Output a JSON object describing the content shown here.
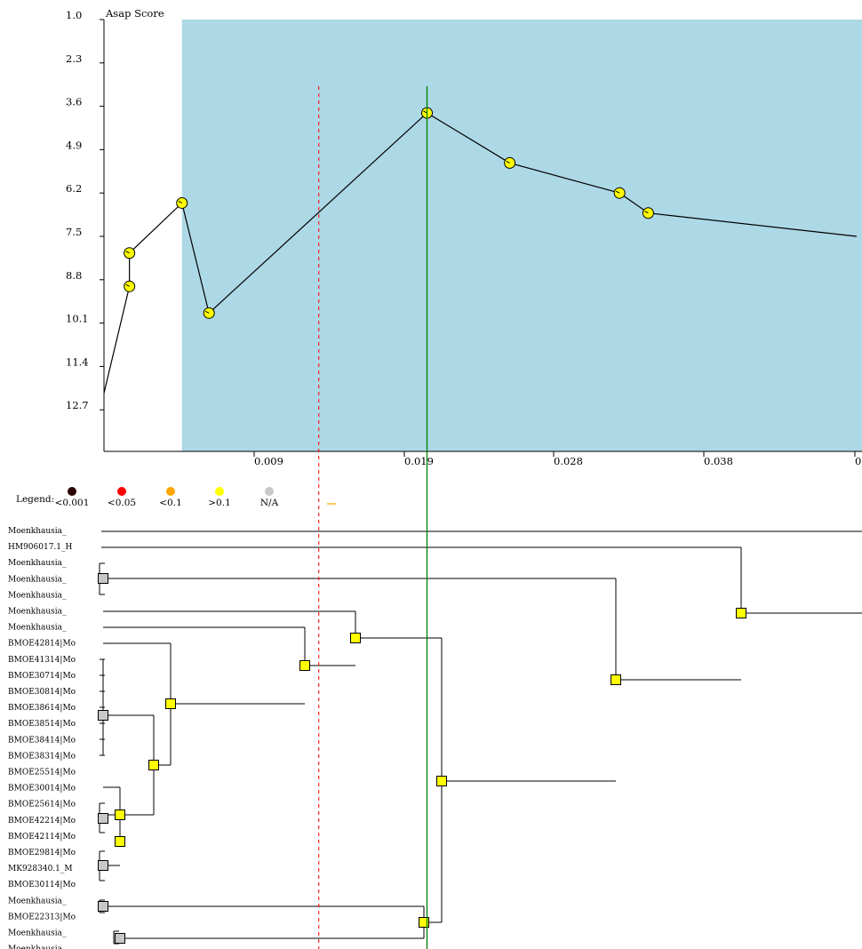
{
  "chart_data": {
    "type": "line",
    "title": "Asap Score",
    "ylabel": "Asap Score",
    "y_ticks": [
      "1.0",
      "2.3",
      "3.6",
      "4.9",
      "6.2",
      "7.5",
      "8.8",
      "10.1",
      "11.4",
      "12.7"
    ],
    "x_ticks": [
      "0.009",
      "0.019",
      "0.028",
      "0.038",
      "0"
    ],
    "ylim": [
      1.0,
      13.9
    ],
    "xlim": [
      0.0,
      0.0473
    ],
    "y_inverted": true,
    "highlight_region_x": [
      0.0049,
      0.0473
    ],
    "points": [
      {
        "x": 0.0,
        "y": 12.2
      },
      {
        "x": 0.0016,
        "y": 9.0
      },
      {
        "x": 0.0016,
        "y": 8.0
      },
      {
        "x": 0.0049,
        "y": 6.5
      },
      {
        "x": 0.0066,
        "y": 9.8
      },
      {
        "x": 0.0203,
        "y": 3.8
      },
      {
        "x": 0.0255,
        "y": 5.3
      },
      {
        "x": 0.0324,
        "y": 6.2
      },
      {
        "x": 0.0342,
        "y": 6.8
      },
      {
        "x": 0.0473,
        "y": 7.5
      }
    ],
    "threshold_dashed_x": 0.0135,
    "selected_partition_x": 0.0203,
    "colors": {
      "shade": "#add8e6",
      "line": "#000000",
      "threshold": "#ff0000",
      "selected": "#008000",
      "point_fill": "#ffff00"
    }
  },
  "legend": {
    "title": "Legend:",
    "items": [
      {
        "label": "<0.001",
        "color": "#2b0000"
      },
      {
        "label": "<0.05",
        "color": "#ff0000"
      },
      {
        "label": "<0.1",
        "color": "#ffa500"
      },
      {
        "label": ">0.1",
        "color": "#ffff00"
      },
      {
        "label": "N/A",
        "color": "#c8c8c8"
      }
    ]
  },
  "tree": {
    "labels": [
      "Moenkhausia_",
      "HM906017.1_H",
      "Moenkhausia_",
      "Moenkhausia_",
      "Moenkhausia_",
      "Moenkhausia_",
      "Moenkhausia_",
      "BMOE42814|Mo",
      "BMOE41314|Mo",
      "BMOE30714|Mo",
      "BMOE30814|Mo",
      "BMOE38614|Mo",
      "BMOE38514|Mo",
      "BMOE38414|Mo",
      "BMOE38314|Mo",
      "BMOE25514|Mo",
      "BMOE30014|Mo",
      "BMOE25614|Mo",
      "BMOE42214|Mo",
      "BMOE42114|Mo",
      "BMOE29814|Mo",
      "MK928340.1_M",
      "BMOE30114|Mo",
      "Moenkhausia_",
      "BMOE22313|Mo",
      "Moenkhausia_",
      "Moenkhausia_"
    ]
  }
}
